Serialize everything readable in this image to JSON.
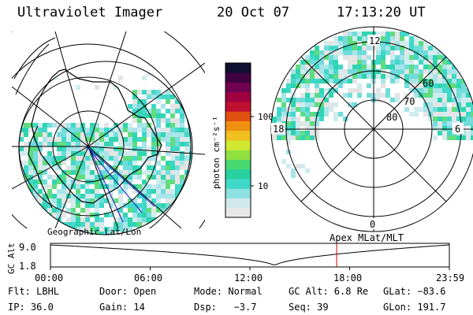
{
  "header": {
    "instrument": "Ultraviolet Imager",
    "date": "20 Oct 07",
    "time": "17:13:20 UT"
  },
  "left_panel": {
    "caption": "Geographic Lat/Lon"
  },
  "right_panel": {
    "caption": "Apex MLat/MLT",
    "mlt_labels": {
      "top": "12",
      "left": "18",
      "right": "6",
      "bottom": "0"
    },
    "lat_labels": [
      "60",
      "70",
      "80"
    ]
  },
  "colorbar": {
    "unit_label": "photon cm⁻²s⁻¹",
    "scale": "log",
    "tick_labels": [
      "100",
      "10"
    ],
    "colors": [
      "#e8e8e8",
      "#cfe8ec",
      "#8fe0e0",
      "#40d8c8",
      "#28d0a0",
      "#48d870",
      "#90e040",
      "#d0e830",
      "#f0c020",
      "#f09010",
      "#e05010",
      "#c01030",
      "#a00040",
      "#700050",
      "#400040",
      "#101030"
    ]
  },
  "gc_alt_plot": {
    "ylabel": "GC Alt",
    "y_ticks": [
      "9.0",
      "1.8"
    ],
    "x_ticks": [
      "00:00",
      "06:00",
      "12:00",
      "18:00",
      "23:59"
    ],
    "marker_time_hours": 17.22,
    "marker_color": "#cc0000"
  },
  "status": {
    "row1": [
      {
        "label": "Flt:",
        "value": "LBHL"
      },
      {
        "label": "Door:",
        "value": "Open"
      },
      {
        "label": "Mode:",
        "value": "Normal"
      },
      {
        "label": "GC Alt:",
        "value": "6.8 Re"
      },
      {
        "label": "GLat:",
        "value": "−83.6"
      }
    ],
    "row2": [
      {
        "label": "IP:",
        "value": "36.0"
      },
      {
        "label": "Gain:",
        "value": "14"
      },
      {
        "label": "Dsp:",
        "value": "  −3.7"
      },
      {
        "label": "Seq:",
        "value": "39"
      },
      {
        "label": "GLon:",
        "value": "191.7"
      }
    ]
  }
}
